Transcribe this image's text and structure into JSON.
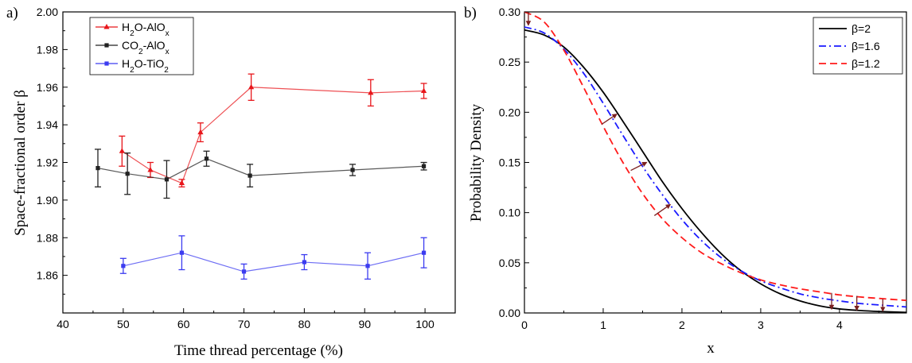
{
  "chart_data": [
    {
      "type": "line",
      "panel_label": "a)",
      "xlabel": "Time thread percentage (%)",
      "ylabel": "Space-fractional order β",
      "xlim": [
        40,
        105
      ],
      "ylim": [
        1.84,
        2.0
      ],
      "xticks": [
        "40",
        "50",
        "60",
        "70",
        "80",
        "90",
        "100"
      ],
      "yticks": [
        "1.86",
        "1.88",
        "1.90",
        "1.92",
        "1.94",
        "1.96",
        "1.98",
        "2.00"
      ],
      "legend_position": "top-left",
      "series": [
        {
          "name_parts": [
            "H",
            "2",
            "O-AlO",
            "x",
            ""
          ],
          "color": "#e8161b",
          "marker": "triangle",
          "x": [
            49.8,
            54.5,
            59.7,
            62.8,
            71.2,
            91.0,
            99.8
          ],
          "y": [
            1.926,
            1.916,
            1.909,
            1.936,
            1.96,
            1.957,
            1.958
          ],
          "err": [
            0.008,
            0.004,
            0.002,
            0.005,
            0.007,
            0.007,
            0.004
          ]
        },
        {
          "name_parts": [
            "CO",
            "2",
            "-AlO",
            "x",
            ""
          ],
          "color": "#222222",
          "marker": "square",
          "x": [
            45.8,
            50.7,
            57.2,
            63.8,
            71.0,
            88.0,
            99.8
          ],
          "y": [
            1.917,
            1.914,
            1.911,
            1.922,
            1.913,
            1.916,
            1.918
          ],
          "err": [
            0.01,
            0.011,
            0.01,
            0.004,
            0.006,
            0.003,
            0.002
          ]
        },
        {
          "name_parts": [
            "H",
            "2",
            "O-TiO",
            "2",
            ""
          ],
          "color": "#3c3cf0",
          "marker": "square",
          "x": [
            50.0,
            59.7,
            70.0,
            80.0,
            90.5,
            99.8
          ],
          "y": [
            1.865,
            1.872,
            1.862,
            1.867,
            1.865,
            1.872
          ],
          "err": [
            0.004,
            0.009,
            0.004,
            0.004,
            0.007,
            0.008
          ]
        }
      ]
    },
    {
      "type": "line",
      "panel_label": "b)",
      "xlabel": "x",
      "ylabel": "Probability Density",
      "xlim": [
        0,
        4.85
      ],
      "ylim": [
        0,
        0.3
      ],
      "xticks": [
        "0",
        "1",
        "2",
        "3",
        "4"
      ],
      "yticks": [
        "0.00",
        "0.05",
        "0.10",
        "0.15",
        "0.20",
        "0.25",
        "0.30"
      ],
      "legend_position": "top-right",
      "series": [
        {
          "name": "β=2",
          "color": "#000000",
          "dash": "solid",
          "x": [
            0,
            0.25,
            0.5,
            0.75,
            1.0,
            1.25,
            1.5,
            1.75,
            2.0,
            2.25,
            2.5,
            2.75,
            3.0,
            3.25,
            3.5,
            3.75,
            4.0,
            4.25,
            4.5,
            4.85
          ],
          "y": [
            0.282,
            0.277,
            0.265,
            0.245,
            0.22,
            0.191,
            0.161,
            0.131,
            0.104,
            0.08,
            0.059,
            0.042,
            0.029,
            0.019,
            0.012,
            0.007,
            0.004,
            0.0025,
            0.0015,
            0.0006
          ]
        },
        {
          "name": "β=1.6",
          "color": "#1a1aff",
          "dash": "dashdot",
          "x": [
            0,
            0.25,
            0.5,
            0.75,
            1.0,
            1.25,
            1.5,
            1.75,
            2.0,
            2.25,
            2.5,
            2.75,
            3.0,
            3.25,
            3.5,
            3.75,
            4.0,
            4.25,
            4.5,
            4.85
          ],
          "y": [
            0.285,
            0.279,
            0.263,
            0.239,
            0.209,
            0.177,
            0.146,
            0.118,
            0.093,
            0.072,
            0.055,
            0.042,
            0.032,
            0.025,
            0.019,
            0.015,
            0.012,
            0.0095,
            0.008,
            0.006
          ]
        },
        {
          "name": "β=1.2",
          "color": "#ff1a1a",
          "dash": "dashed",
          "x": [
            0,
            0.25,
            0.5,
            0.75,
            1.0,
            1.25,
            1.5,
            1.75,
            2.0,
            2.25,
            2.5,
            2.75,
            3.0,
            3.25,
            3.5,
            3.75,
            4.0,
            4.25,
            4.5,
            4.85
          ],
          "y": [
            0.3,
            0.29,
            0.262,
            0.225,
            0.186,
            0.15,
            0.119,
            0.094,
            0.075,
            0.06,
            0.049,
            0.04,
            0.033,
            0.028,
            0.024,
            0.021,
            0.018,
            0.016,
            0.0145,
            0.0125
          ]
        }
      ],
      "annotations": [
        {
          "type": "arrow",
          "from": [
            0.98,
            0.188
          ],
          "to": [
            1.17,
            0.198
          ],
          "color": "#7a2020"
        },
        {
          "type": "arrow",
          "from": [
            1.35,
            0.142
          ],
          "to": [
            1.55,
            0.15
          ],
          "color": "#7a2020"
        },
        {
          "type": "arrow",
          "from": [
            1.65,
            0.097
          ],
          "to": [
            1.85,
            0.108
          ],
          "color": "#7a2020"
        },
        {
          "type": "arrow",
          "from": [
            0.05,
            0.3
          ],
          "to": [
            0.05,
            0.287
          ],
          "color": "#7a2020"
        },
        {
          "type": "arrow",
          "from": [
            3.9,
            0.02
          ],
          "to": [
            3.9,
            0.004
          ],
          "color": "#7a2020"
        },
        {
          "type": "arrow",
          "from": [
            4.22,
            0.017
          ],
          "to": [
            4.22,
            0.003
          ],
          "color": "#7a2020"
        },
        {
          "type": "arrow",
          "from": [
            4.55,
            0.014
          ],
          "to": [
            4.55,
            0.002
          ],
          "color": "#7a2020"
        }
      ]
    }
  ]
}
